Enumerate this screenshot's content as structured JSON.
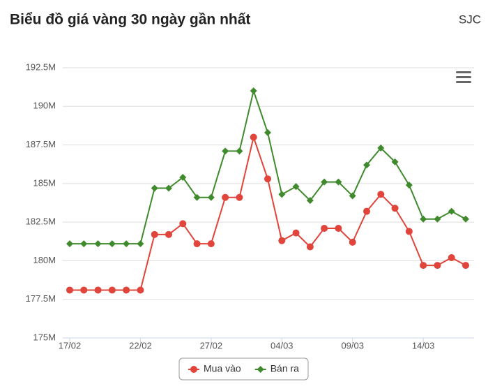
{
  "chart_data": {
    "type": "line",
    "title": "Biểu đồ giá vàng 30 ngày gần nhất",
    "source": "SJC",
    "categories": [
      "17/02",
      null,
      null,
      null,
      null,
      "22/02",
      null,
      null,
      null,
      null,
      "27/02",
      null,
      null,
      null,
      null,
      "04/03",
      null,
      null,
      null,
      null,
      "09/03",
      null,
      null,
      null,
      null,
      "14/03",
      null,
      null,
      null
    ],
    "series": [
      {
        "name": "Mua vào",
        "color": "#e0443a",
        "marker": "circle",
        "values": [
          178.1,
          178.1,
          178.1,
          178.1,
          178.1,
          178.1,
          181.7,
          181.7,
          182.4,
          181.1,
          181.1,
          184.1,
          184.1,
          188.0,
          185.3,
          181.3,
          181.8,
          180.9,
          182.1,
          182.1,
          181.2,
          183.2,
          184.3,
          183.4,
          181.9,
          179.7,
          179.7,
          180.2,
          179.7
        ]
      },
      {
        "name": "Bán ra",
        "color": "#3f8a2c",
        "marker": "diamond",
        "values": [
          181.1,
          181.1,
          181.1,
          181.1,
          181.1,
          181.1,
          184.7,
          184.7,
          185.4,
          184.1,
          184.1,
          187.1,
          187.1,
          191.0,
          188.3,
          184.3,
          184.8,
          183.9,
          185.1,
          185.1,
          184.2,
          186.2,
          187.3,
          186.4,
          184.9,
          182.7,
          182.7,
          183.2,
          182.7
        ]
      }
    ],
    "ylim": [
      175,
      192.5
    ],
    "yticks": [
      {
        "value": 175,
        "label": "175M"
      },
      {
        "value": 177.5,
        "label": "177.5M"
      },
      {
        "value": 180,
        "label": "180M"
      },
      {
        "value": 182.5,
        "label": "182.5M"
      },
      {
        "value": 185,
        "label": "185M"
      },
      {
        "value": 187.5,
        "label": "187.5M"
      },
      {
        "value": 190,
        "label": "190M"
      },
      {
        "value": 192.5,
        "label": "192.5M"
      }
    ],
    "grid": true
  }
}
